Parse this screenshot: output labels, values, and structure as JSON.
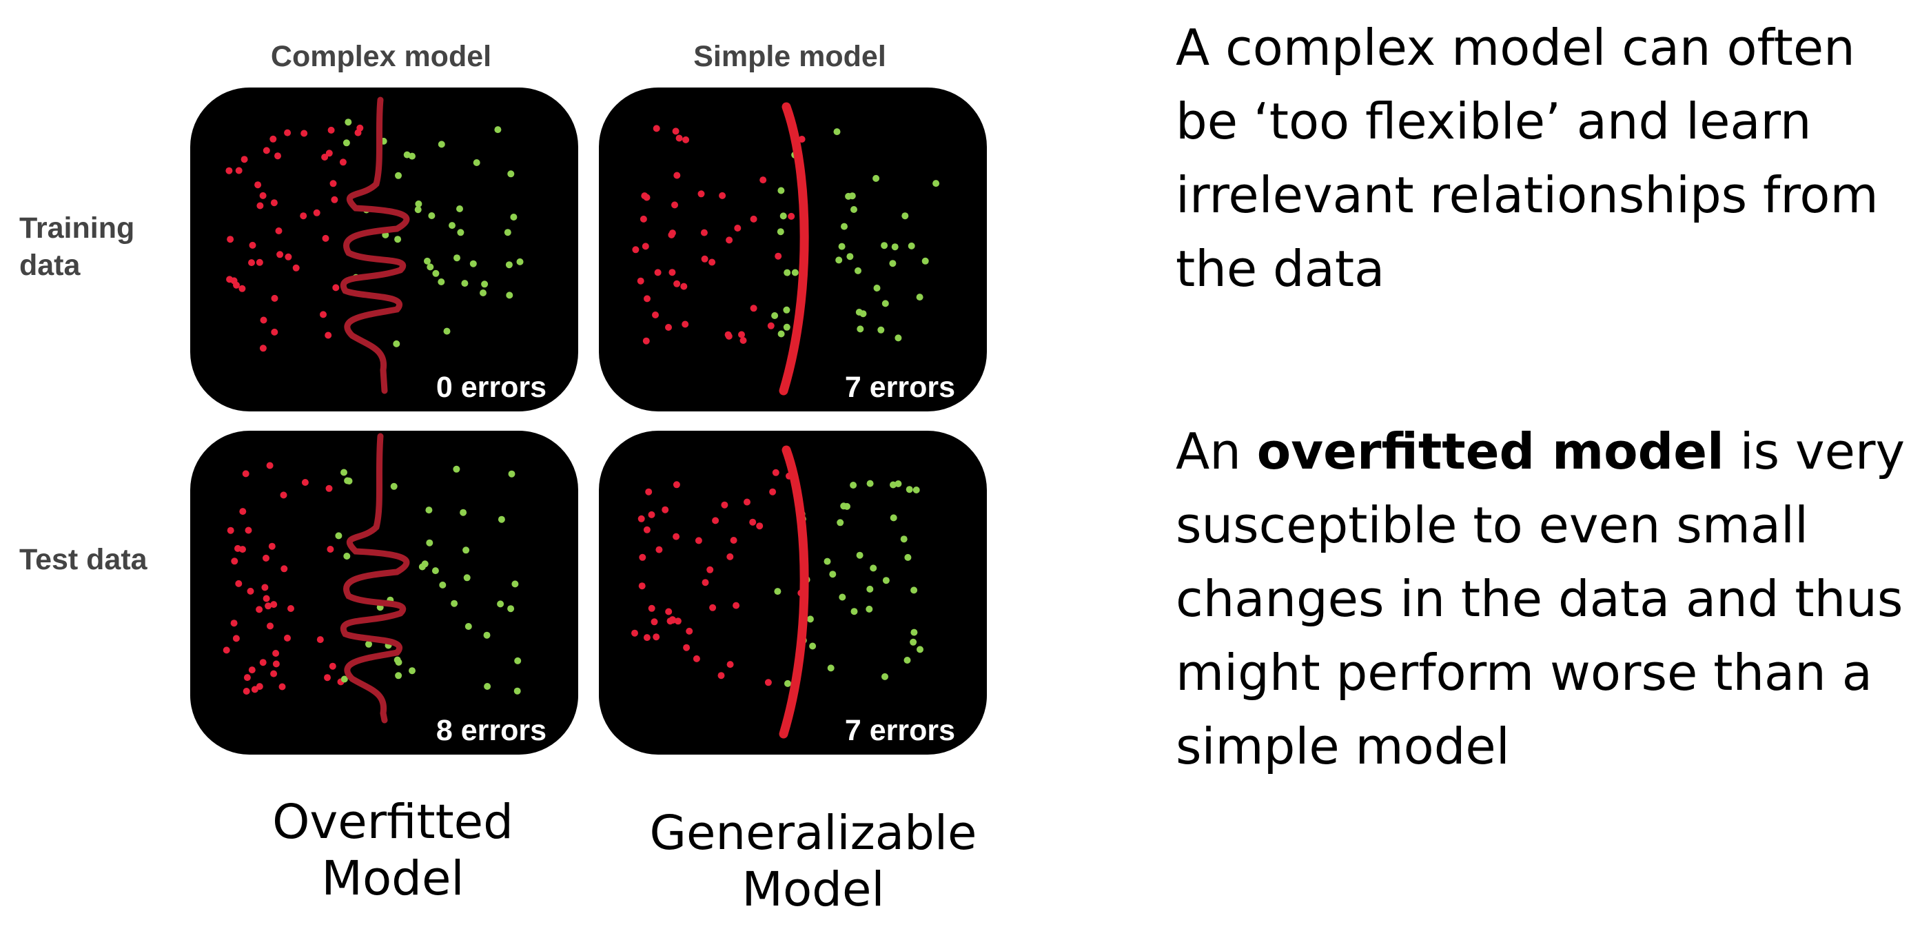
{
  "columns": {
    "complex": "Complex model",
    "simple": "Simple model"
  },
  "rows": {
    "training_line1": "Training",
    "training_line2": "data",
    "test": "Test data"
  },
  "panels": {
    "train_complex_errors": "0 errors",
    "train_simple_errors": "7 errors",
    "test_complex_errors": "8 errors",
    "test_simple_errors": "7 errors"
  },
  "captions": {
    "overfitted_line1": "Overfitted",
    "overfitted_line2": "Model",
    "generalizable_line1": "Generalizable",
    "generalizable_line2": "Model"
  },
  "text": {
    "para1": "A complex model can often be ‘too flexible’ and learn irrelevant relationships from the data",
    "para2_prefix": "An ",
    "para2_bold": "overfitted model",
    "para2_suffix": " is very susceptible to even small changes in the data and thus might perform worse than a simple model"
  },
  "colors": {
    "panel_bg": "#000000",
    "class_red": "#e8203a",
    "class_green": "#8fd14f",
    "complex_boundary": "#a61d2b",
    "simple_boundary": "#e0202e"
  }
}
